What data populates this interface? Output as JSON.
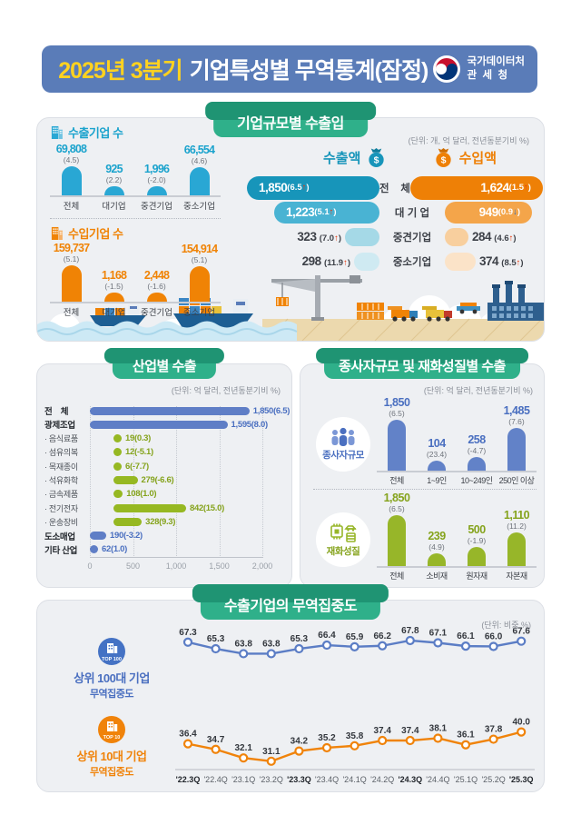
{
  "header": {
    "title_highlight": "2025년 3분기",
    "title_rest": "기업특성별 무역통계(잠정)",
    "agency_line1": "국가데이터처",
    "agency_line2": "관  세  청"
  },
  "colors": {
    "header_bg": "#5a7cb8",
    "title_highlight": "#ffd21f",
    "badge_green": "#2fb08a",
    "export_blue": "#29a7d4",
    "import_orange": "#f08305",
    "funnel_teal": "#1795ba",
    "industry_blue": "#5f7ec6",
    "industry_green": "#96b822",
    "line_blue": "#5b7dc5",
    "line_orange": "#f0830a",
    "arrow_up_red": "#e8380d",
    "arrow_down_blue": "#2d6fc0"
  },
  "panel1": {
    "badge": "기업규모별 수출입",
    "unit": "(단위: 개, 억 달러, 전년동분기비 %)",
    "export_count_title": "수출기업 수",
    "import_count_title": "수입기업 수",
    "export_amount_label": "수출액",
    "import_amount_label": "수입액",
    "size_labels": [
      "전    체",
      "대 기 업",
      "중견기업",
      "중소기업"
    ]
  },
  "panel2": {
    "badge": "산업별 수출",
    "unit": "(단위: 억 달러, 전년동분기비 %)"
  },
  "panel3": {
    "badge": "종사자규모 및 재화성질별 수출",
    "unit": "(단위: 억 달러, 전년동분기비 %)"
  },
  "panel4": {
    "badge": "수출기업의 무역집중도",
    "unit": "(단위: 비중 %)",
    "series_labels": [
      {
        "badge": "TOP 100",
        "line1": "상위 100대 기업",
        "line2": "무역집중도"
      },
      {
        "badge": "TOP 10",
        "line1": "상위 10대 기업",
        "line2": "무역집중도"
      }
    ]
  },
  "chart_data": [
    {
      "id": "export_company_count",
      "type": "bar",
      "title": "수출기업 수",
      "categories": [
        "전체",
        "대기업",
        "중견기업",
        "중소기업"
      ],
      "values": [
        69808,
        925,
        1996,
        66554
      ],
      "value_labels": [
        "69,808",
        "925",
        "1,996",
        "66,554"
      ],
      "rates": [
        "(4.5)",
        "(2.2)",
        "(-2.0)",
        "(4.6)"
      ],
      "color": "#29a7d4",
      "text_color": "#1ba3cd"
    },
    {
      "id": "import_company_count",
      "type": "bar",
      "title": "수입기업 수",
      "categories": [
        "전체",
        "대기업",
        "중견기업",
        "중소기업"
      ],
      "values": [
        159737,
        1168,
        2448,
        154914
      ],
      "value_labels": [
        "159,737",
        "1,168",
        "2,448",
        "154,914"
      ],
      "rates": [
        "(5.1)",
        "(-1.5)",
        "(-1.6)",
        "(5.1)"
      ],
      "color": "#f08305",
      "text_color": "#f08305"
    },
    {
      "id": "export_amount",
      "type": "funnel-bar",
      "title": "수출액",
      "categories": [
        "전체",
        "대기업",
        "중견기업",
        "중소기업"
      ],
      "rows": [
        {
          "label": "1,850",
          "rate": "6.5",
          "dir": "up"
        },
        {
          "label": "1,223",
          "rate": "5.1",
          "dir": "up"
        },
        {
          "label": "323",
          "rate": "7.0",
          "dir": "up"
        },
        {
          "label": "298",
          "rate": "11.9",
          "dir": "up"
        }
      ],
      "shades": [
        "#1795ba",
        "#49b3d3",
        "#a5d9e7",
        "#cfeaf2"
      ]
    },
    {
      "id": "import_amount",
      "type": "funnel-bar",
      "title": "수입액",
      "categories": [
        "전체",
        "대기업",
        "중견기업",
        "중소기업"
      ],
      "rows": [
        {
          "label": "1,624",
          "rate": "1.5",
          "dir": "up"
        },
        {
          "label": "949",
          "rate": "0.9",
          "dir": "down"
        },
        {
          "label": "284",
          "rate": "4.6",
          "dir": "up"
        },
        {
          "label": "374",
          "rate": "8.5",
          "dir": "up"
        }
      ],
      "shades": [
        "#ee8006",
        "#f4a54a",
        "#f8cf9e",
        "#fbe3c8"
      ]
    },
    {
      "id": "industry_exports",
      "type": "bar-horizontal",
      "title": "산업별 수출",
      "categories": [
        "전    체",
        "광제조업",
        "· 음식료품",
        "· 섬유의복",
        "· 목재종이",
        "· 석유화학",
        "· 금속제품",
        "· 전기전자",
        "· 운송장비",
        "도소매업",
        "기타 산업"
      ],
      "values": [
        1850,
        1595,
        19,
        12,
        6,
        279,
        108,
        842,
        328,
        190,
        62
      ],
      "value_labels": [
        "1,850(6.5)",
        "1,595(8.0)",
        "19(0.3)",
        "12(-5.1)",
        "6(-7.7)",
        "279(-6.6)",
        "108(1.0)",
        "842(15.0)",
        "328(9.3)",
        "190(-3.2)",
        "62(1.0)"
      ],
      "styles": [
        "main",
        "main",
        "sub",
        "sub",
        "sub",
        "sub",
        "sub",
        "sub",
        "sub",
        "main",
        "main"
      ],
      "color_main": "#5f7ec6",
      "color_sub": "#96b822",
      "text_main": "#4a6fc0",
      "text_sub": "#85a31c",
      "axis_ticks": [
        "0",
        "500",
        "1,000",
        "1,500",
        "2,000"
      ],
      "xlim": [
        0,
        2000
      ]
    },
    {
      "id": "worker_size_exports",
      "type": "bar",
      "title": "종사자규모",
      "categories": [
        "전체",
        "1~9인",
        "10~249인",
        "250인 이상"
      ],
      "values": [
        1850,
        104,
        258,
        1485
      ],
      "value_labels": [
        "1,850",
        "104",
        "258",
        "1,485"
      ],
      "rates": [
        "(6.5)",
        "(23.4)",
        "(-4.7)",
        "(7.6)"
      ],
      "color": "#6282c8",
      "text_color": "#4a6fc0"
    },
    {
      "id": "goods_nature_exports",
      "type": "bar",
      "title": "재화성질",
      "categories": [
        "전체",
        "소비재",
        "원자재",
        "자본재"
      ],
      "values": [
        1850,
        239,
        500,
        1110
      ],
      "value_labels": [
        "1,850",
        "239",
        "500",
        "1,110"
      ],
      "rates": [
        "(6.5)",
        "(4.9)",
        "(-1.9)",
        "(11.2)"
      ],
      "color": "#97b629",
      "text_color": "#85a31c"
    },
    {
      "id": "trade_concentration",
      "type": "line",
      "title": "수출기업의 무역집중도",
      "x": [
        "'22.3Q",
        "'22.4Q",
        "'23.1Q",
        "'23.2Q",
        "'23.3Q",
        "'23.4Q",
        "'24.1Q",
        "'24.2Q",
        "'24.3Q",
        "'24.4Q",
        "'25.1Q",
        "'25.2Q",
        "'25.3Q"
      ],
      "bold_x_indexes": [
        0,
        4,
        8,
        12
      ],
      "series": [
        {
          "name": "상위 100대 기업 무역집중도",
          "color": "#5b7dc5",
          "values": [
            67.3,
            65.3,
            63.8,
            63.8,
            65.3,
            66.4,
            65.9,
            66.2,
            67.8,
            67.1,
            66.1,
            66.0,
            67.6
          ]
        },
        {
          "name": "상위 10대 기업 무역집중도",
          "color": "#f0830a",
          "values": [
            36.4,
            34.7,
            32.1,
            31.1,
            34.2,
            35.2,
            35.8,
            37.4,
            37.4,
            38.1,
            36.1,
            37.8,
            40.0
          ]
        }
      ],
      "ylim": [
        28,
        70
      ],
      "unit": "비중 %",
      "legend_position": "left"
    }
  ]
}
